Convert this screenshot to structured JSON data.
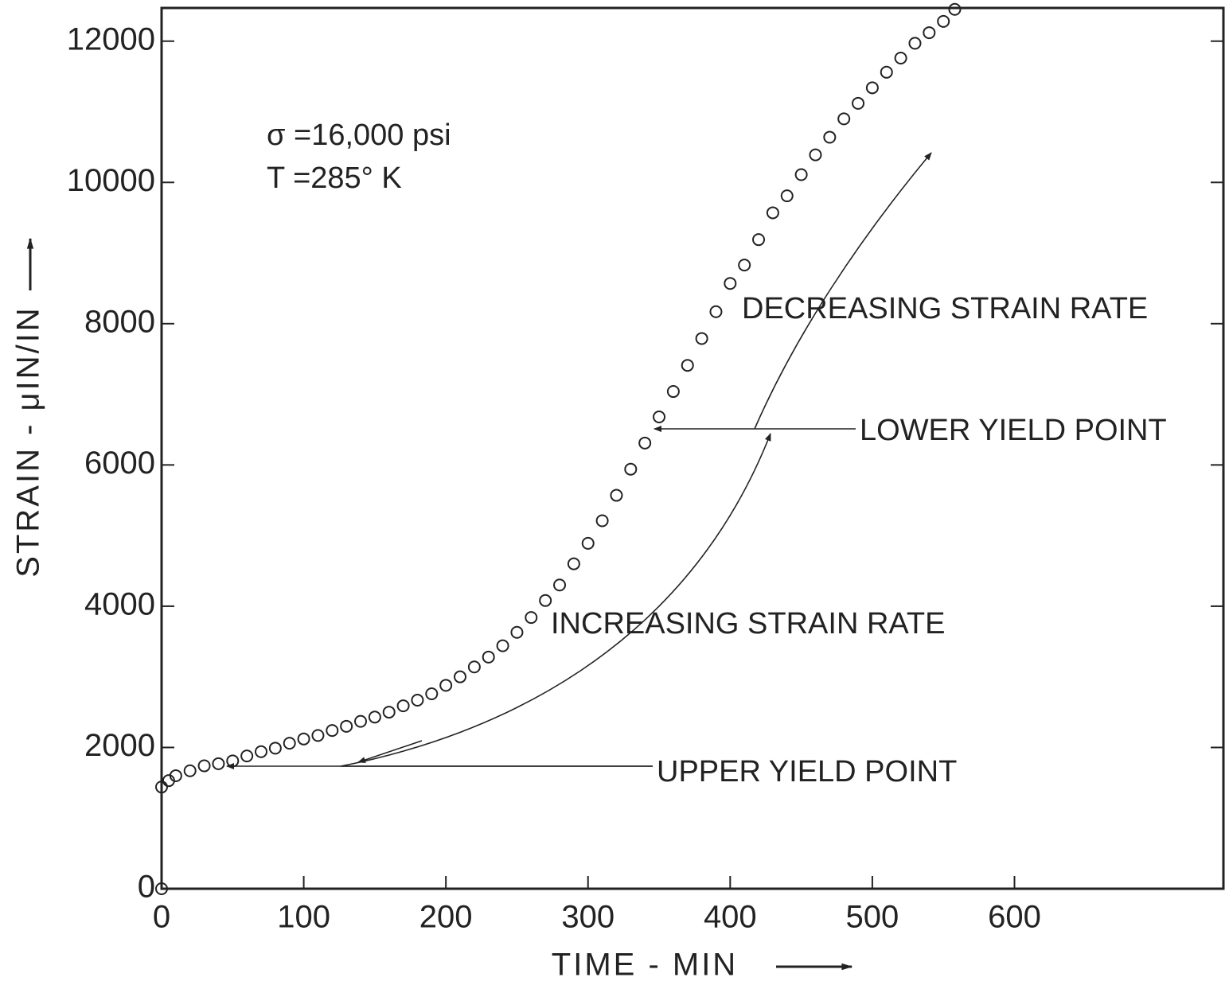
{
  "chart_data": {
    "type": "scatter",
    "xlabel": "TIME - MIN",
    "ylabel": "STRAIN - μIN/IN",
    "annotations": [
      "σ =16,000 psi",
      "T =285° K",
      "DECREASING STRAIN RATE",
      "LOWER YIELD POINT",
      "INCREASING STRAIN RATE",
      "UPPER YIELD POINT"
    ],
    "series": [
      {
        "name": "strain",
        "color": "#222222",
        "x": [
          0,
          0,
          5,
          10,
          20,
          30,
          40,
          50,
          60,
          70,
          80,
          90,
          100,
          110,
          120,
          130,
          140,
          150,
          160,
          170,
          180,
          190,
          200,
          210,
          220,
          230,
          240,
          250,
          260,
          270,
          280,
          290,
          300,
          310,
          320,
          330,
          340,
          350,
          360,
          370,
          380,
          390,
          400,
          410,
          420,
          430,
          440,
          450,
          460,
          470,
          480,
          490,
          500,
          510,
          520,
          530,
          540,
          550,
          558
        ],
        "values": [
          0,
          1440,
          1530,
          1600,
          1670,
          1740,
          1770,
          1810,
          1880,
          1940,
          1990,
          2060,
          2120,
          2170,
          2240,
          2300,
          2370,
          2430,
          2500,
          2590,
          2670,
          2760,
          2880,
          3000,
          3140,
          3280,
          3440,
          3630,
          3840,
          4080,
          4300,
          4600,
          4890,
          5210,
          5570,
          5940,
          6310,
          6680,
          7040,
          7410,
          7790,
          8170,
          8570,
          8830,
          9190,
          9570,
          9810,
          10110,
          10390,
          10640,
          10900,
          11120,
          11340,
          11560,
          11760,
          11970,
          12120,
          12280,
          12450
        ]
      }
    ],
    "xlim": [
      0,
      747
    ],
    "ylim": [
      0,
      12470
    ],
    "xticks": [
      0,
      100,
      200,
      300,
      400,
      500,
      600
    ],
    "yticks": [
      0,
      2000,
      4000,
      6000,
      8000,
      10000,
      12000
    ],
    "grid": false
  }
}
